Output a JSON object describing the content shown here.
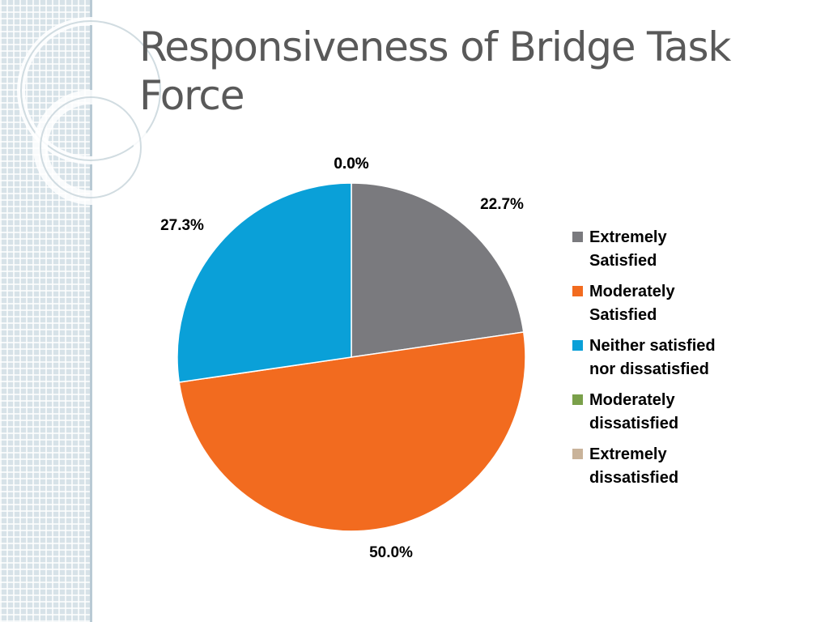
{
  "slide": {
    "title_line1": "Responsiveness of Bridge Task",
    "title_line2": "Force"
  },
  "chart_data": {
    "type": "pie",
    "title": "",
    "categories": [
      "Extremely Satisfied",
      "Moderately Satisfied",
      "Neither satisfied nor dissatisfied",
      "Moderately dissatisfied",
      "Extremely dissatisfied"
    ],
    "values": [
      22.7,
      50.0,
      27.3,
      0.0,
      0.0
    ],
    "data_labels": [
      "22.7%",
      "50.0%",
      "27.3%",
      "0.0%",
      "0.0%"
    ],
    "colors": [
      "#7a7a7e",
      "#f26b1f",
      "#0aa0d8",
      "#7aa04a",
      "#c9b39a"
    ],
    "legend": {
      "position": "right",
      "entries": [
        [
          "Extremely",
          "Satisfied"
        ],
        [
          "Moderately",
          "Satisfied"
        ],
        [
          "Neither satisfied",
          "nor dissatisfied"
        ],
        [
          "Moderately",
          "dissatisfied"
        ],
        [
          "Extremely",
          "dissatisfied"
        ]
      ]
    }
  }
}
